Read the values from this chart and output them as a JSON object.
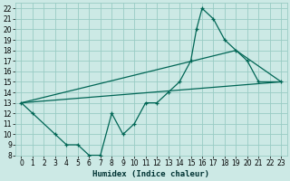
{
  "xlabel": "Humidex (Indice chaleur)",
  "bg_color": "#cce9e5",
  "grid_color": "#99ccc4",
  "line_color": "#006655",
  "xlim": [
    -0.5,
    23.5
  ],
  "ylim": [
    8,
    22.5
  ],
  "xticks": [
    0,
    1,
    2,
    3,
    4,
    5,
    6,
    7,
    8,
    9,
    10,
    11,
    12,
    13,
    14,
    15,
    16,
    17,
    18,
    19,
    20,
    21,
    22,
    23
  ],
  "yticks": [
    8,
    9,
    10,
    11,
    12,
    13,
    14,
    15,
    16,
    17,
    18,
    19,
    20,
    21,
    22
  ],
  "series1_x": [
    0,
    1,
    3,
    4,
    5,
    6,
    7,
    8,
    9,
    10,
    11,
    12,
    13,
    14,
    15,
    15.5,
    16,
    17,
    18,
    19,
    20,
    21,
    23
  ],
  "series1_y": [
    13,
    12,
    10,
    9,
    9,
    8,
    8,
    12,
    10,
    11,
    13,
    13,
    14,
    15,
    17,
    20,
    22,
    21,
    19,
    18,
    17,
    15,
    15
  ],
  "series2_x": [
    0,
    23
  ],
  "series2_y": [
    13,
    15
  ],
  "series3_x": [
    0,
    19,
    23
  ],
  "series3_y": [
    13,
    18,
    15
  ],
  "tick_fontsize": 5.5,
  "xlabel_fontsize": 6.5
}
